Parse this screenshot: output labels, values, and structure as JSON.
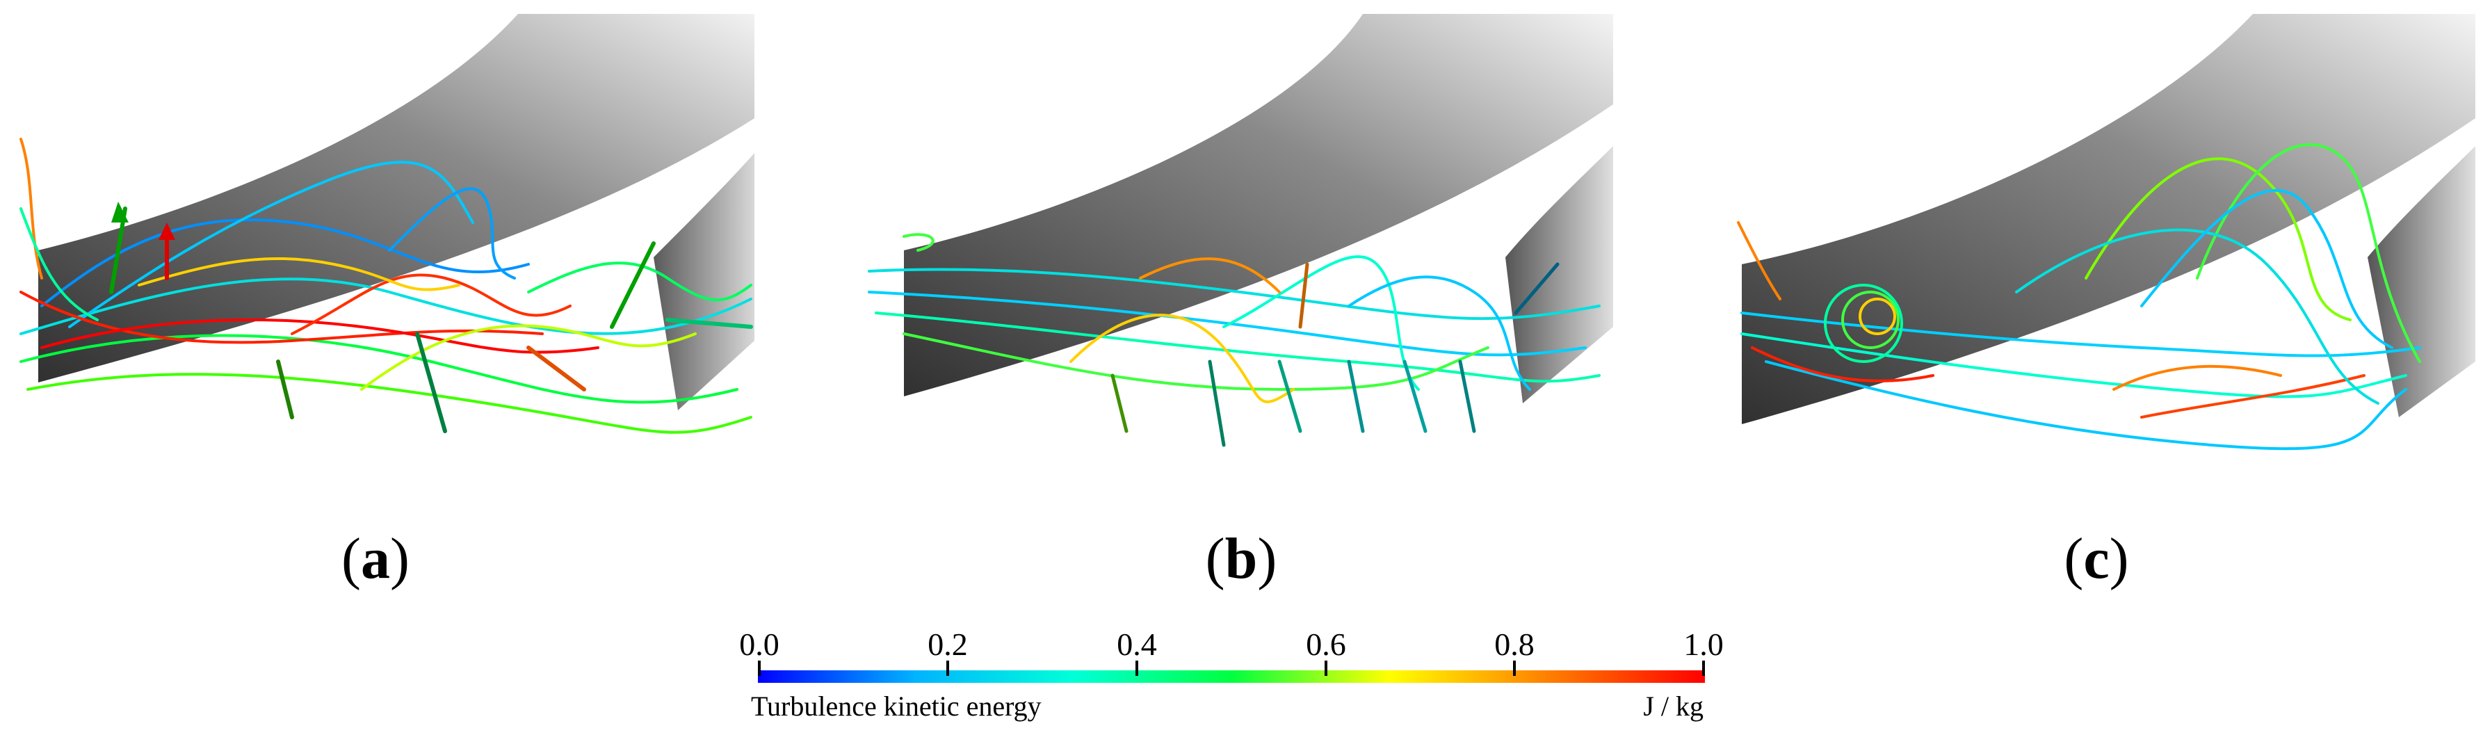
{
  "panels": [
    {
      "label_open": "(",
      "label_letter": "a",
      "label_close": ")"
    },
    {
      "label_open": "(",
      "label_letter": "b",
      "label_close": ")"
    },
    {
      "label_open": "(",
      "label_letter": "c",
      "label_close": ")"
    }
  ],
  "colorbar": {
    "title": "Turbulence kinetic energy",
    "unit": "J / kg",
    "ticks": [
      "0.0",
      "0.2",
      "0.4",
      "0.6",
      "0.8",
      "1.0"
    ],
    "colors": [
      "#0000ff",
      "#00b4ff",
      "#00ffd8",
      "#00ff40",
      "#ffff00",
      "#ff8000",
      "#ff0000"
    ]
  }
}
